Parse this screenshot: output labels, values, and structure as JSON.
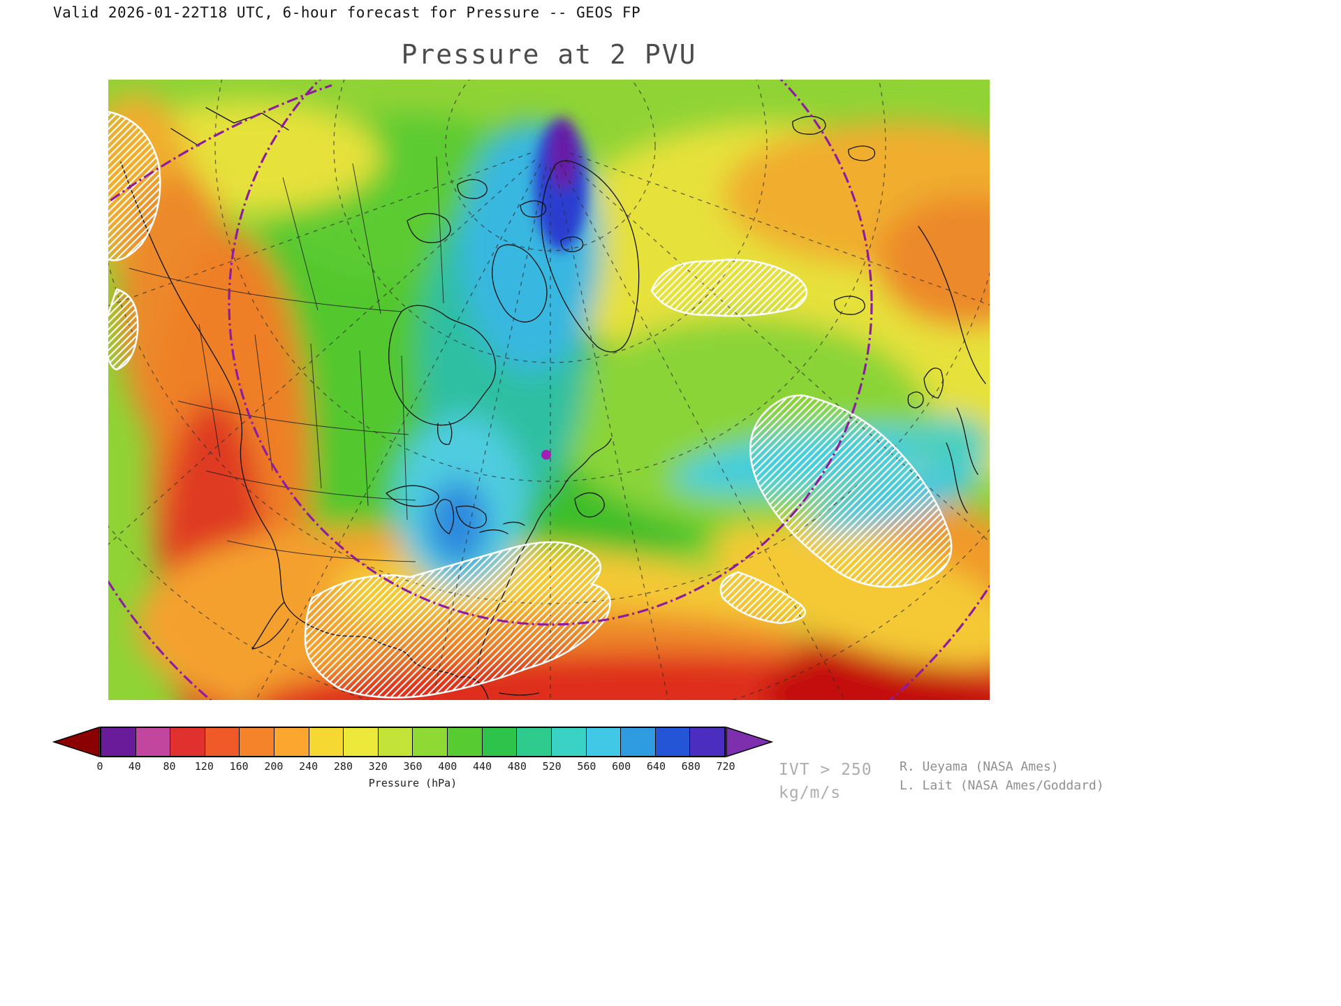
{
  "header": {
    "valid_line": "Valid 2026-01-22T18 UTC, 6-hour forecast for Pressure -- GEOS FP",
    "title": "Pressure at 2 PVU"
  },
  "colorbar": {
    "label": "Pressure (hPa)",
    "ticks": [
      "0",
      "40",
      "80",
      "120",
      "160",
      "200",
      "240",
      "280",
      "320",
      "360",
      "400",
      "440",
      "480",
      "520",
      "560",
      "600",
      "640",
      "680",
      "720"
    ],
    "segment_colors": [
      "#6A1B9A",
      "#C2459E",
      "#E0312E",
      "#F05A28",
      "#F5832A",
      "#FAA62F",
      "#F5D832",
      "#EDE93A",
      "#C3E338",
      "#8FD935",
      "#57CC32",
      "#2EC44C",
      "#2FCB8E",
      "#39D2C4",
      "#41C8E6",
      "#2F9BE0",
      "#2455D6",
      "#4B2DBF"
    ],
    "arrow_left_color": "#8B0000",
    "arrow_right_color": "#7E2FAE"
  },
  "annotations": {
    "ivt_line1": "IVT > 250",
    "ivt_line2": "kg/m/s",
    "credit_line1": "R. Ueyama (NASA Ames)",
    "credit_line2": "L. Lait (NASA Ames/Goddard)"
  },
  "map": {
    "marker_color": "#A11FB3",
    "boundary_color": "#8E1CA0",
    "hatch_meaning": "IVT > 250 kg/m/s"
  }
}
